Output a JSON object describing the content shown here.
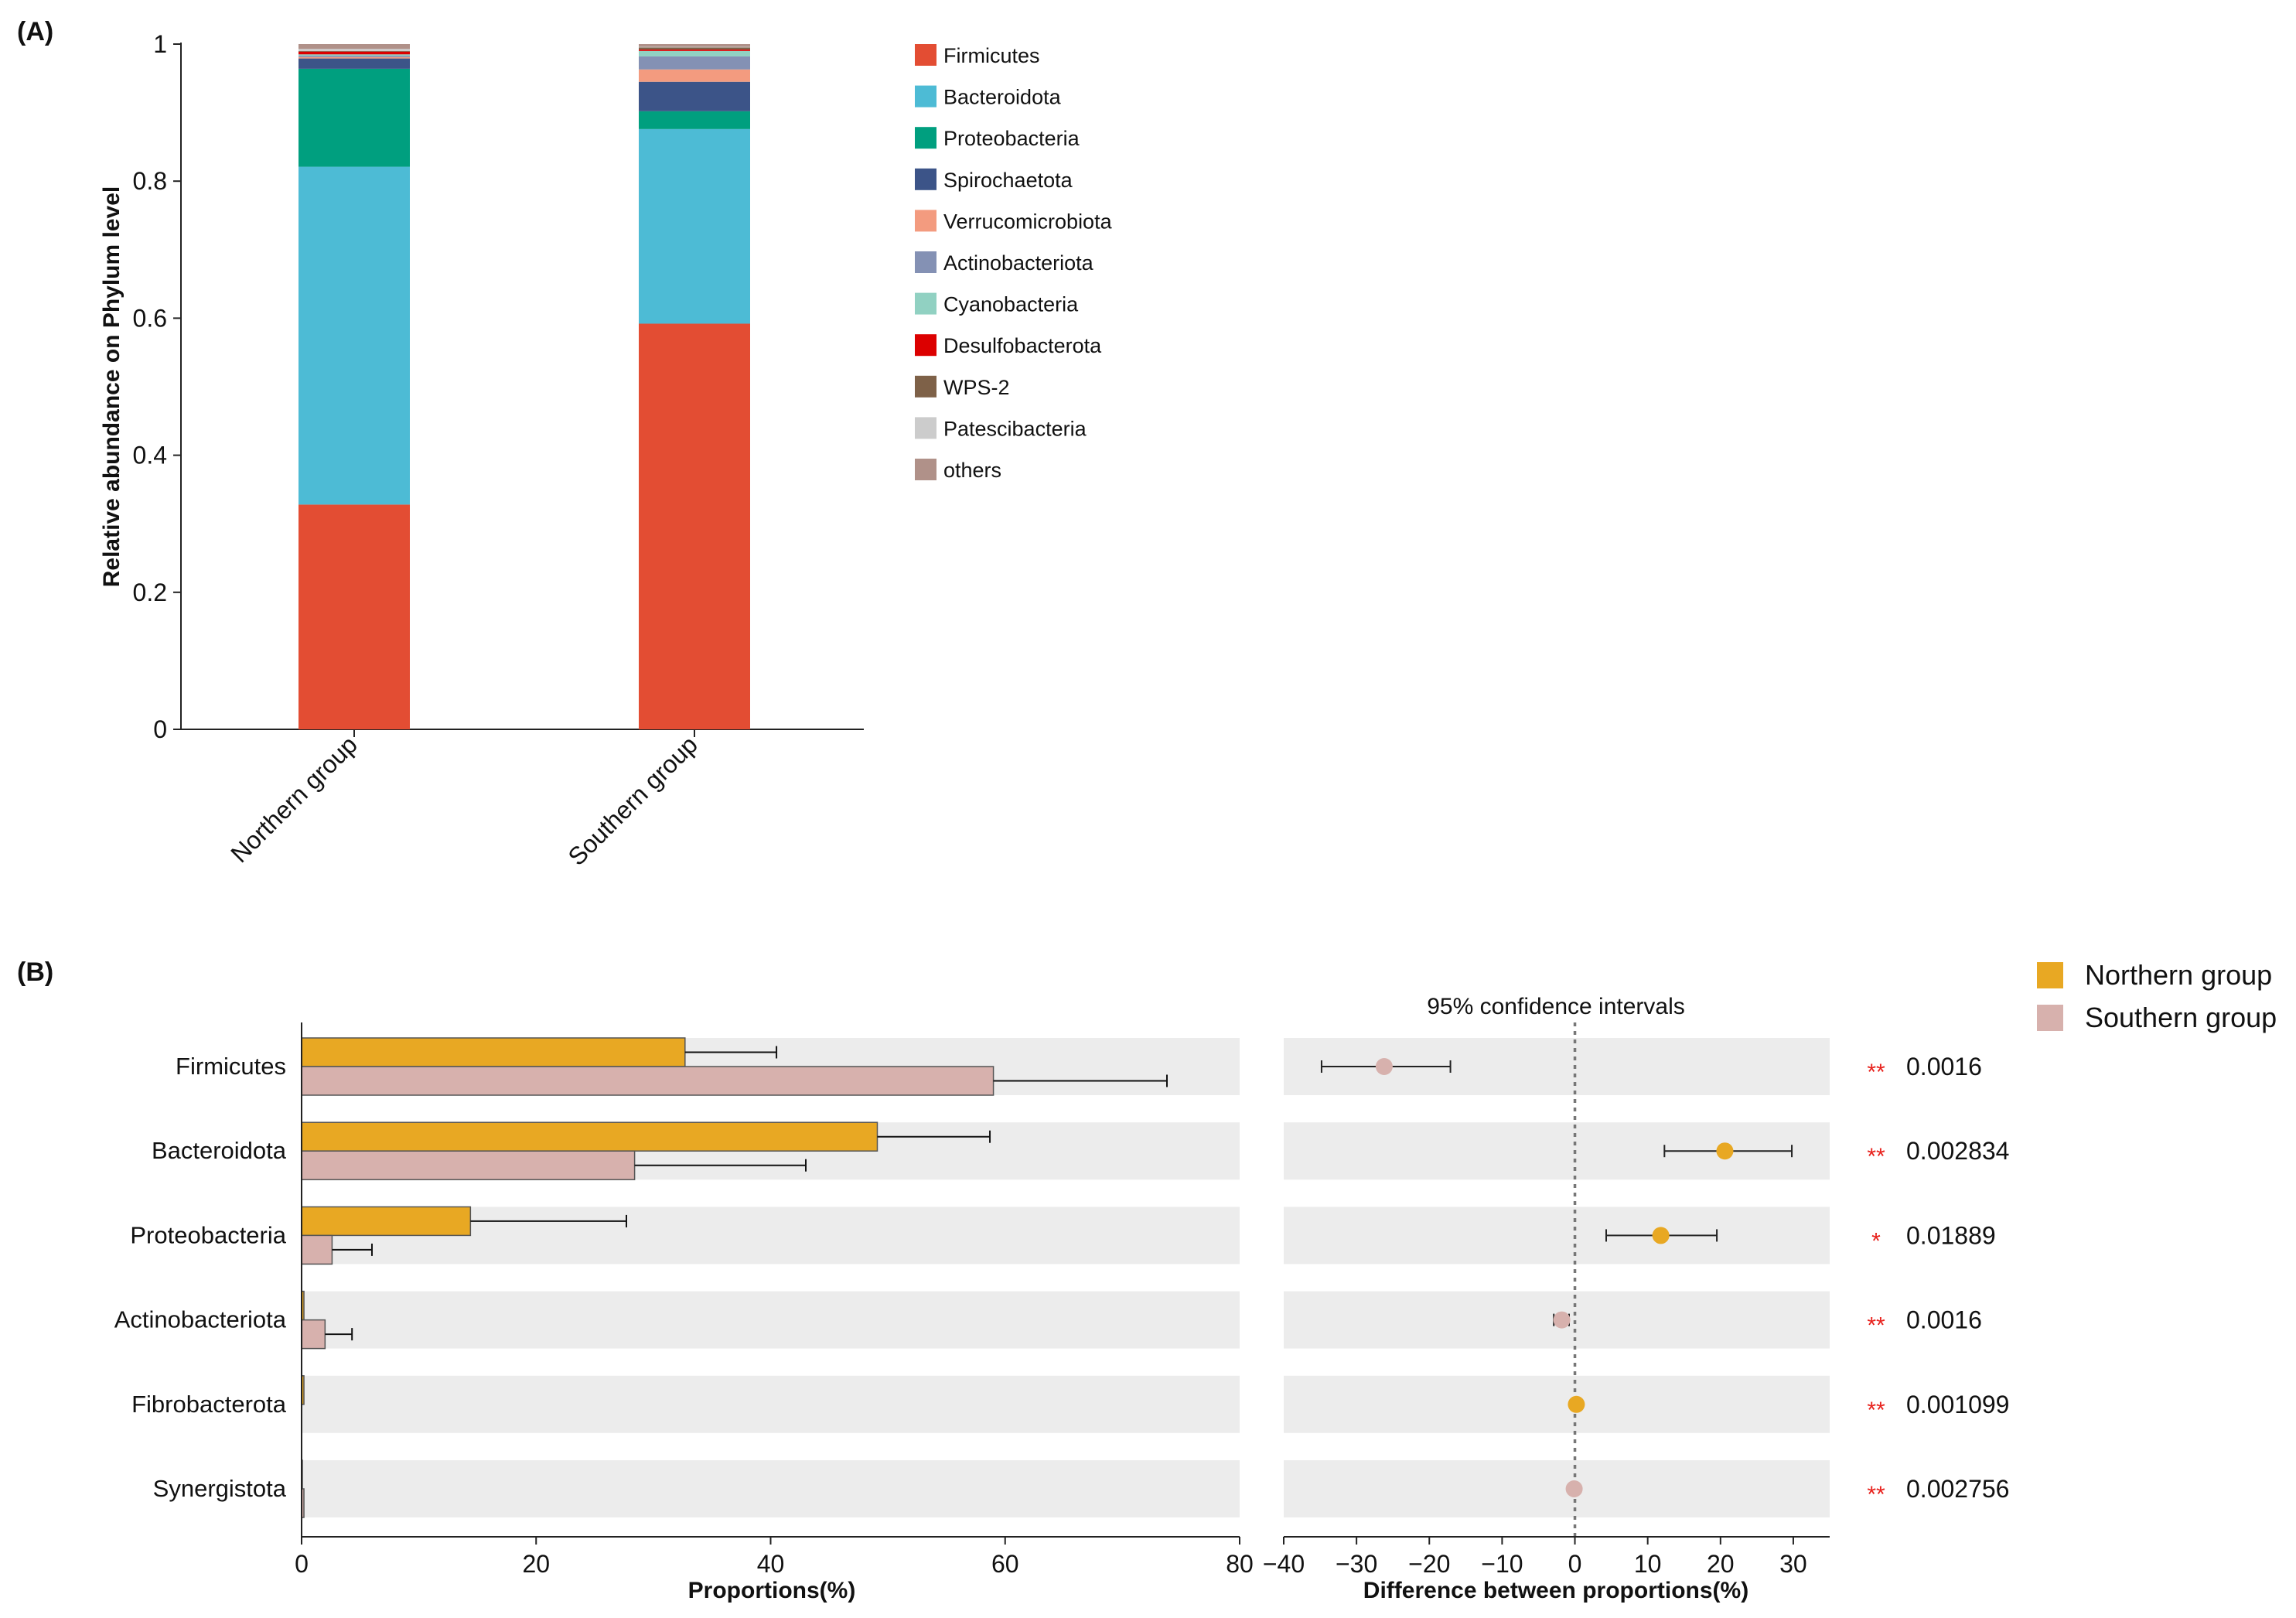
{
  "panels": {
    "a": {
      "label": "(A)"
    },
    "b": {
      "label": "(B)"
    }
  },
  "chart_data": [
    {
      "type": "bar",
      "stacked": true,
      "title": "",
      "ylabel": "Relative abundance on Phylum level",
      "xlabel": "",
      "ylim": [
        0,
        1
      ],
      "yticks": [
        0,
        0.2,
        0.4,
        0.6,
        0.8,
        1
      ],
      "ytick_labels": [
        "0",
        "0.2",
        "0.4",
        "0.6",
        "0.8",
        "1"
      ],
      "categories": [
        "Northern group",
        "Southern group"
      ],
      "legend_position": "right",
      "series": [
        {
          "name": "Firmicutes",
          "color": "#e34d33",
          "values": [
            0.328,
            0.592
          ]
        },
        {
          "name": "Bacteroidota",
          "color": "#4dbbd5",
          "values": [
            0.493,
            0.284
          ]
        },
        {
          "name": "Proteobacteria",
          "color": "#009f7f",
          "values": [
            0.143,
            0.026
          ]
        },
        {
          "name": "Spirochaetota",
          "color": "#3c5488",
          "values": [
            0.015,
            0.043
          ]
        },
        {
          "name": "Verrucomicrobiota",
          "color": "#f39b7f",
          "values": [
            0.002,
            0.018
          ]
        },
        {
          "name": "Actinobacteriota",
          "color": "#8491b4",
          "values": [
            0.002,
            0.019
          ]
        },
        {
          "name": "Cyanobacteria",
          "color": "#91d1c2",
          "values": [
            0.002,
            0.008
          ]
        },
        {
          "name": "Desulfobacterota",
          "color": "#dc0000",
          "values": [
            0.004,
            0.002
          ]
        },
        {
          "name": "WPS-2",
          "color": "#7e6148",
          "values": [
            0.001,
            0.003
          ]
        },
        {
          "name": "Patescibacteria",
          "color": "#cccccc",
          "values": [
            0.003,
            0.001
          ]
        },
        {
          "name": "others",
          "color": "#b09189",
          "values": [
            0.007,
            0.004
          ]
        }
      ]
    },
    {
      "type": "bar",
      "orientation": "horizontal",
      "title": "",
      "xlabel": "Proportions(%)",
      "xlim": [
        0,
        80
      ],
      "xticks": [
        0,
        20,
        40,
        60,
        80
      ],
      "categories": [
        "Firmicutes",
        "Bacteroidota",
        "Proteobacteria",
        "Actinobacteriota",
        "Fibrobacterota",
        "Synergistota"
      ],
      "series": [
        {
          "name": "Northern group",
          "color": "#e8a823",
          "values": [
            32.7,
            49.1,
            14.4,
            0.2,
            0.2,
            0.05
          ],
          "error": [
            7.8,
            9.6,
            13.3,
            0.1,
            0.1,
            0.02
          ]
        },
        {
          "name": "Southern group",
          "color": "#d7b1ad",
          "values": [
            59.0,
            28.4,
            2.6,
            2.0,
            0.0,
            0.2
          ],
          "error": [
            14.8,
            14.6,
            3.4,
            2.3,
            0.0,
            0.1
          ]
        }
      ]
    },
    {
      "type": "scatter",
      "title": "95% confidence intervals",
      "xlabel": "Difference between proportions(%)",
      "xlim": [
        -40,
        35
      ],
      "xticks": [
        -40,
        -30,
        -20,
        -10,
        0,
        10,
        20,
        30
      ],
      "xtick_labels": [
        "−40",
        "−30",
        "−20",
        "−10",
        "0",
        "10",
        "20",
        "30"
      ],
      "categories": [
        "Firmicutes",
        "Bacteroidota",
        "Proteobacteria",
        "Actinobacteriota",
        "Fibrobacterota",
        "Synergistota"
      ],
      "values": [
        -26.2,
        20.6,
        11.8,
        -1.8,
        0.2,
        -0.1
      ],
      "ci_low": [
        -34.8,
        12.3,
        4.3,
        -2.9,
        0.1,
        -0.2
      ],
      "ci_high": [
        -17.1,
        29.8,
        19.5,
        -0.8,
        0.3,
        0.0
      ],
      "point_group": [
        "Southern group",
        "Northern group",
        "Northern group",
        "Southern group",
        "Northern group",
        "Southern group"
      ],
      "significance": [
        "**",
        "**",
        "*",
        "**",
        "**",
        "**"
      ],
      "p_values": [
        "0.0016",
        "0.002834",
        "0.01889",
        "0.0016",
        "0.001099",
        "0.002756"
      ],
      "legend": [
        {
          "name": "Northern group",
          "color": "#e8a823"
        },
        {
          "name": "Southern group",
          "color": "#d7b1ad"
        }
      ]
    }
  ]
}
